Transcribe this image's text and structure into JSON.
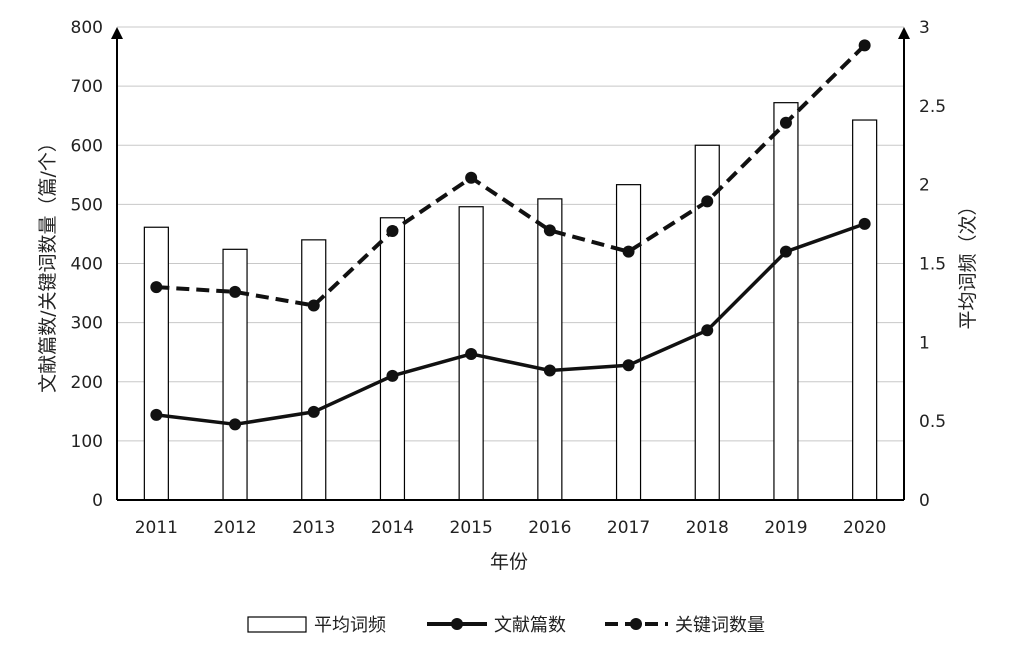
{
  "chart_data": {
    "type": "bar+line",
    "categories": [
      "2011",
      "2012",
      "2013",
      "2014",
      "2015",
      "2016",
      "2017",
      "2018",
      "2019",
      "2020"
    ],
    "xlabel": "年份",
    "ylabel_left": "文献篇数/关键词数量（篇/个）",
    "ylabel_right": "平均词频（次）",
    "ylim_left": [
      0,
      800
    ],
    "ylim_right": [
      0,
      3
    ],
    "yticks_left": [
      "0",
      "100",
      "200",
      "300",
      "400",
      "500",
      "600",
      "700",
      "800"
    ],
    "yticks_right": [
      "0",
      "0.5",
      "1",
      "1.5",
      "2",
      "2.5",
      "3"
    ],
    "grid": true,
    "legend_position": "bottom",
    "series": [
      {
        "name": "平均词频",
        "kind": "bar",
        "axis": "right",
        "values": [
          1.73,
          1.59,
          1.65,
          1.79,
          1.86,
          1.91,
          2.0,
          2.25,
          2.52,
          2.41
        ]
      },
      {
        "name": "文献篇数",
        "kind": "line-solid",
        "axis": "left",
        "values": [
          144,
          128,
          149,
          210,
          247,
          219,
          228,
          287,
          420,
          467
        ]
      },
      {
        "name": "关键词数量",
        "kind": "line-dashed",
        "axis": "left",
        "values": [
          360,
          352,
          329,
          455,
          545,
          456,
          420,
          505,
          638,
          769
        ]
      }
    ],
    "colors": {
      "bar_fill": "#ffffff",
      "bar_stroke": "#000000",
      "line": "#111111",
      "grid": "#c8c8c8"
    }
  }
}
